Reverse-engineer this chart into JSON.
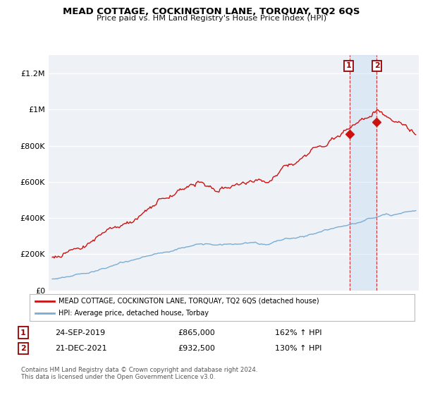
{
  "title": "MEAD COTTAGE, COCKINGTON LANE, TORQUAY, TQ2 6QS",
  "subtitle": "Price paid vs. HM Land Registry's House Price Index (HPI)",
  "ylabel_ticks": [
    "£0",
    "£200K",
    "£400K",
    "£600K",
    "£800K",
    "£1M",
    "£1.2M"
  ],
  "ytick_values": [
    0,
    200000,
    400000,
    600000,
    800000,
    1000000,
    1200000
  ],
  "ylim": [
    0,
    1300000
  ],
  "xlim_start": 1994.7,
  "xlim_end": 2025.5,
  "background_color": "#ffffff",
  "plot_bg_color": "#eef2f7",
  "grid_color": "#ffffff",
  "hpi_color": "#7aadd4",
  "house_color": "#cc1111",
  "sale1_x": 2019.73,
  "sale1_y": 865000,
  "sale2_x": 2021.97,
  "sale2_y": 932500,
  "shaded_start": 2019.73,
  "shaded_end": 2021.97,
  "legend_house": "MEAD COTTAGE, COCKINGTON LANE, TORQUAY, TQ2 6QS (detached house)",
  "legend_hpi": "HPI: Average price, detached house, Torbay",
  "table_row1": [
    "1",
    "24-SEP-2019",
    "£865,000",
    "162% ↑ HPI"
  ],
  "table_row2": [
    "2",
    "21-DEC-2021",
    "£932,500",
    "130% ↑ HPI"
  ],
  "footer": "Contains HM Land Registry data © Crown copyright and database right 2024.\nThis data is licensed under the Open Government Licence v3.0."
}
